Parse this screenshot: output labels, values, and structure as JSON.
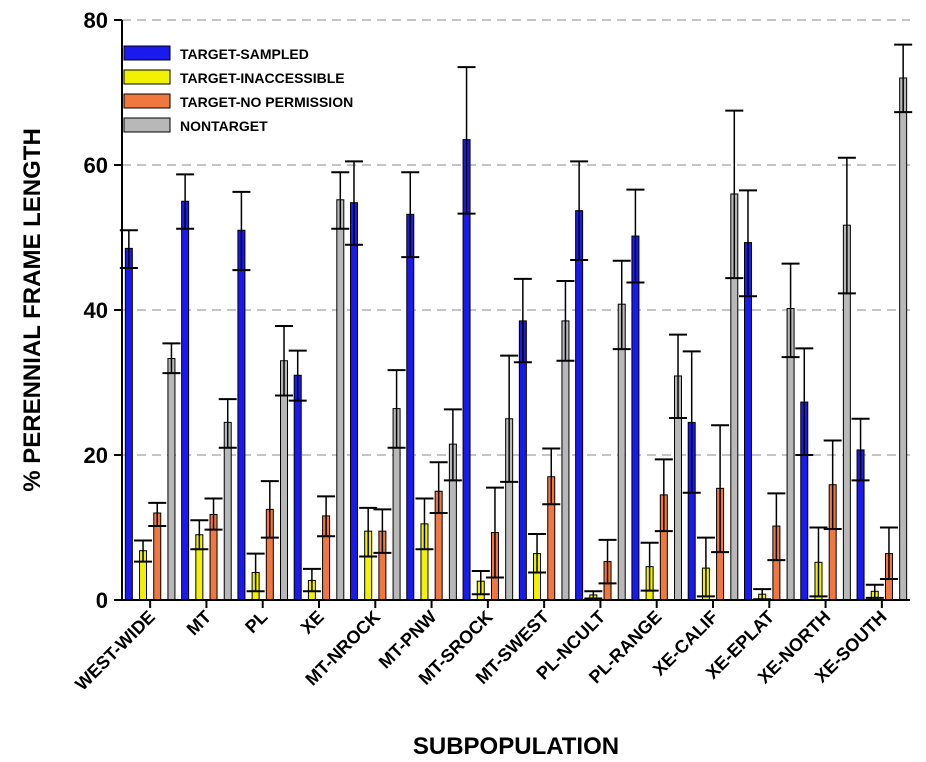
{
  "chart_data": {
    "type": "bar",
    "xlabel": "SUBPOPULATION",
    "ylabel": "% PERENNIAL FRAME LENGTH",
    "ylim": [
      0,
      80
    ],
    "yticks": [
      0,
      20,
      40,
      60,
      80
    ],
    "grid": "horizontal dashed",
    "legend_position": "top-left",
    "categories": [
      "WEST-WIDE",
      "MT",
      "PL",
      "XE",
      "MT-NROCK",
      "MT-PNW",
      "MT-SROCK",
      "MT-SWEST",
      "PL-NCULT",
      "PL-RANGE",
      "XE-CALIF",
      "XE-EPLAT",
      "XE-NORTH",
      "XE-SOUTH"
    ],
    "series": [
      {
        "name": "TARGET-SAMPLED",
        "color": "#1a1aee",
        "values": [
          48.5,
          55.0,
          51.0,
          31.0,
          54.8,
          53.2,
          63.5,
          38.5,
          53.7,
          50.2,
          24.5,
          49.3,
          27.3,
          20.7
        ],
        "err_low": [
          45.8,
          51.2,
          45.5,
          27.5,
          49.0,
          47.3,
          53.3,
          32.8,
          46.9,
          43.8,
          14.8,
          41.9,
          20.0,
          16.5
        ],
        "err_high": [
          51.0,
          58.7,
          56.3,
          34.4,
          60.5,
          59.0,
          73.5,
          44.3,
          60.5,
          56.6,
          34.3,
          56.5,
          34.7,
          25.0
        ]
      },
      {
        "name": "TARGET-INACCESSIBLE",
        "color": "#f2f200",
        "values": [
          6.8,
          9.0,
          3.8,
          2.7,
          9.5,
          10.5,
          2.6,
          6.4,
          0.7,
          4.6,
          4.4,
          0.8,
          5.2,
          1.2
        ],
        "err_low": [
          5.3,
          7.0,
          1.2,
          1.2,
          6.0,
          7.0,
          0.8,
          3.8,
          0.2,
          1.3,
          0.5,
          0.1,
          0.5,
          0.3
        ],
        "err_high": [
          8.2,
          11.0,
          6.4,
          4.3,
          12.7,
          14.0,
          4.0,
          9.1,
          1.2,
          7.9,
          8.6,
          1.5,
          10.0,
          2.1
        ]
      },
      {
        "name": "TARGET-NO PERMISSION",
        "color": "#f07840",
        "values": [
          12.0,
          11.8,
          12.5,
          11.6,
          9.5,
          15.0,
          9.3,
          17.0,
          5.3,
          14.5,
          15.4,
          10.2,
          15.9,
          6.4
        ],
        "err_low": [
          10.2,
          9.7,
          8.6,
          8.8,
          6.5,
          12.0,
          3.1,
          13.2,
          2.3,
          9.5,
          6.6,
          5.5,
          9.8,
          2.9
        ],
        "err_high": [
          13.4,
          14.0,
          16.4,
          14.3,
          12.5,
          19.0,
          15.5,
          20.9,
          8.3,
          19.4,
          24.1,
          14.7,
          22.0,
          10.0
        ]
      },
      {
        "name": "NONTARGET",
        "color": "#b8b8b8",
        "values": [
          33.3,
          24.5,
          33.0,
          55.2,
          26.4,
          21.5,
          25.0,
          38.5,
          40.8,
          30.9,
          56.0,
          40.2,
          51.7,
          72.0
        ],
        "err_low": [
          31.3,
          21.0,
          28.2,
          51.2,
          21.0,
          16.5,
          16.3,
          33.0,
          34.6,
          25.1,
          44.4,
          33.5,
          42.3,
          67.3
        ],
        "err_high": [
          35.4,
          27.7,
          37.8,
          59.0,
          31.7,
          26.3,
          33.7,
          44.0,
          46.8,
          36.6,
          67.5,
          46.4,
          61.0,
          76.6
        ]
      }
    ]
  }
}
